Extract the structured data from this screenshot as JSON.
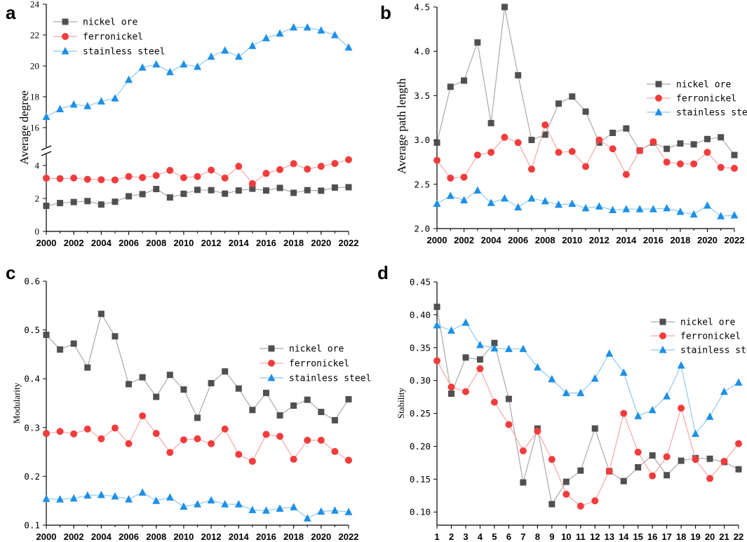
{
  "colors": {
    "nickel_ore": "#505050",
    "nickel_ore_line": "#a9a9a9",
    "ferronickel": "#f23c3c",
    "ferronickel_line": "#f4a6a6",
    "stainless_steel": "#1e90e6",
    "stainless_steel_line": "#8ec8f2"
  },
  "chart_data": [
    {
      "panel": "a",
      "type": "line",
      "ylabel": "Average degree",
      "legend_position": "top-left",
      "axis_break": true,
      "lower_ylim": [
        0,
        4
      ],
      "upper_ylim": [
        16,
        24
      ],
      "lower_ticks": [
        "0",
        "2",
        "4"
      ],
      "upper_ticks": [
        "16",
        "18",
        "20",
        "22",
        "24"
      ],
      "x": [
        2000,
        2001,
        2002,
        2003,
        2004,
        2005,
        2006,
        2007,
        2008,
        2009,
        2010,
        2011,
        2012,
        2013,
        2014,
        2015,
        2016,
        2017,
        2018,
        2019,
        2020,
        2021,
        2022
      ],
      "xticks": [
        "2000",
        "2002",
        "2004",
        "2006",
        "2008",
        "2010",
        "2012",
        "2014",
        "2016",
        "2018",
        "2020",
        "2022"
      ],
      "series": [
        {
          "name": "nickel ore",
          "values": [
            1.55,
            1.72,
            1.78,
            1.84,
            1.63,
            1.8,
            2.13,
            2.26,
            2.57,
            2.06,
            2.28,
            2.52,
            2.5,
            2.29,
            2.48,
            2.59,
            2.48,
            2.64,
            2.34,
            2.5,
            2.47,
            2.66,
            2.68
          ]
        },
        {
          "name": "ferronickel",
          "values": [
            3.23,
            3.2,
            3.24,
            3.16,
            3.14,
            3.12,
            3.33,
            3.27,
            3.39,
            3.7,
            3.26,
            3.33,
            3.72,
            3.24,
            3.95,
            2.9,
            3.52,
            3.75,
            4.11,
            3.78,
            3.95,
            4.12,
            4.35
          ]
        },
        {
          "name": "stainless steel",
          "values": [
            16.7,
            17.2,
            17.5,
            17.4,
            17.7,
            17.9,
            19.1,
            19.9,
            20.1,
            19.6,
            20.1,
            19.95,
            20.6,
            21.0,
            20.6,
            21.3,
            21.8,
            22.1,
            22.5,
            22.5,
            22.3,
            22.0,
            21.2
          ]
        }
      ]
    },
    {
      "panel": "b",
      "type": "line",
      "ylabel": "Average path length",
      "legend_position": "right",
      "ylim": [
        2.0,
        4.5
      ],
      "yticks": [
        "2.0",
        "2.5",
        "3.0",
        "3.5",
        "4.0",
        "4.5"
      ],
      "x": [
        2000,
        2001,
        2002,
        2003,
        2004,
        2005,
        2006,
        2007,
        2008,
        2009,
        2010,
        2011,
        2012,
        2013,
        2014,
        2015,
        2016,
        2017,
        2018,
        2019,
        2020,
        2021,
        2022
      ],
      "xticks": [
        "2000",
        "2002",
        "2004",
        "2006",
        "2008",
        "2010",
        "2012",
        "2014",
        "2016",
        "2018",
        "2020",
        "2022"
      ],
      "series": [
        {
          "name": "nickel ore",
          "values": [
            2.97,
            3.6,
            3.67,
            4.1,
            3.19,
            4.5,
            3.73,
            3.0,
            3.06,
            3.41,
            3.49,
            3.32,
            2.97,
            3.08,
            3.13,
            2.88,
            2.97,
            2.9,
            2.96,
            2.95,
            3.01,
            3.03,
            2.83
          ]
        },
        {
          "name": "ferronickel",
          "values": [
            2.77,
            2.57,
            2.58,
            2.83,
            2.86,
            3.03,
            2.97,
            2.67,
            3.17,
            2.86,
            2.87,
            2.7,
            3.0,
            2.9,
            2.61,
            2.88,
            2.98,
            2.75,
            2.73,
            2.73,
            2.86,
            2.69,
            2.68
          ]
        },
        {
          "name": "stainless steel",
          "values": [
            2.28,
            2.37,
            2.32,
            2.43,
            2.29,
            2.34,
            2.24,
            2.34,
            2.31,
            2.27,
            2.28,
            2.23,
            2.25,
            2.21,
            2.22,
            2.22,
            2.22,
            2.23,
            2.19,
            2.16,
            2.26,
            2.14,
            2.15
          ]
        }
      ]
    },
    {
      "panel": "c",
      "type": "line",
      "ylabel": "Modularity",
      "legend_position": "right",
      "ylim": [
        0.1,
        0.6
      ],
      "yticks": [
        "0.1",
        "0.2",
        "0.3",
        "0.4",
        "0.5",
        "0.6"
      ],
      "x": [
        2000,
        2001,
        2002,
        2003,
        2004,
        2005,
        2006,
        2007,
        2008,
        2009,
        2010,
        2011,
        2012,
        2013,
        2014,
        2015,
        2016,
        2017,
        2018,
        2019,
        2020,
        2021,
        2022
      ],
      "xticks": [
        "2000",
        "2002",
        "2004",
        "2006",
        "2008",
        "2010",
        "2012",
        "2014",
        "2016",
        "2018",
        "2020",
        "2022"
      ],
      "series": [
        {
          "name": "nickel ore",
          "values": [
            0.49,
            0.46,
            0.472,
            0.423,
            0.533,
            0.487,
            0.389,
            0.403,
            0.363,
            0.408,
            0.378,
            0.32,
            0.391,
            0.415,
            0.38,
            0.336,
            0.371,
            0.325,
            0.345,
            0.357,
            0.332,
            0.315,
            0.358
          ]
        },
        {
          "name": "ferronickel",
          "values": [
            0.288,
            0.292,
            0.287,
            0.297,
            0.277,
            0.299,
            0.267,
            0.324,
            0.288,
            0.249,
            0.275,
            0.277,
            0.267,
            0.297,
            0.245,
            0.231,
            0.286,
            0.282,
            0.235,
            0.274,
            0.274,
            0.251,
            0.233
          ]
        },
        {
          "name": "stainless steel",
          "values": [
            0.154,
            0.153,
            0.155,
            0.161,
            0.162,
            0.159,
            0.153,
            0.167,
            0.15,
            0.157,
            0.138,
            0.143,
            0.151,
            0.143,
            0.143,
            0.131,
            0.13,
            0.134,
            0.137,
            0.114,
            0.128,
            0.13,
            0.127
          ]
        }
      ]
    },
    {
      "panel": "d",
      "type": "line",
      "ylabel": "Stability",
      "legend_position": "top-right",
      "ylim": [
        0.08,
        0.45
      ],
      "yticks": [
        "0.10",
        "0.15",
        "0.20",
        "0.25",
        "0.30",
        "0.35",
        "0.40",
        "0.45"
      ],
      "x": [
        1,
        2,
        3,
        4,
        5,
        6,
        7,
        8,
        9,
        10,
        11,
        12,
        13,
        14,
        15,
        16,
        17,
        18,
        19,
        20,
        21,
        22
      ],
      "xticks": [
        "1",
        "2",
        "3",
        "4",
        "5",
        "6",
        "7",
        "8",
        "9",
        "10",
        "11",
        "12",
        "13",
        "14",
        "15",
        "16",
        "17",
        "18",
        "19",
        "20",
        "21",
        "22"
      ],
      "series": [
        {
          "name": "nickel ore",
          "values": [
            0.412,
            0.28,
            0.335,
            0.332,
            0.357,
            0.272,
            0.145,
            0.227,
            0.112,
            0.146,
            0.163,
            0.227,
            0.162,
            0.147,
            0.168,
            0.186,
            0.156,
            0.178,
            0.182,
            0.181,
            0.176,
            0.165
          ]
        },
        {
          "name": "ferronickel",
          "values": [
            0.33,
            0.29,
            0.283,
            0.318,
            0.267,
            0.233,
            0.193,
            0.223,
            0.18,
            0.127,
            0.109,
            0.117,
            0.162,
            0.25,
            0.191,
            0.155,
            0.184,
            0.258,
            0.18,
            0.151,
            0.177,
            0.204
          ]
        },
        {
          "name": "stainless steel",
          "values": [
            0.384,
            0.376,
            0.388,
            0.354,
            0.349,
            0.348,
            0.348,
            0.32,
            0.302,
            0.281,
            0.281,
            0.303,
            0.341,
            0.312,
            0.246,
            0.255,
            0.276,
            0.323,
            0.219,
            0.245,
            0.283,
            0.297
          ]
        }
      ]
    }
  ]
}
